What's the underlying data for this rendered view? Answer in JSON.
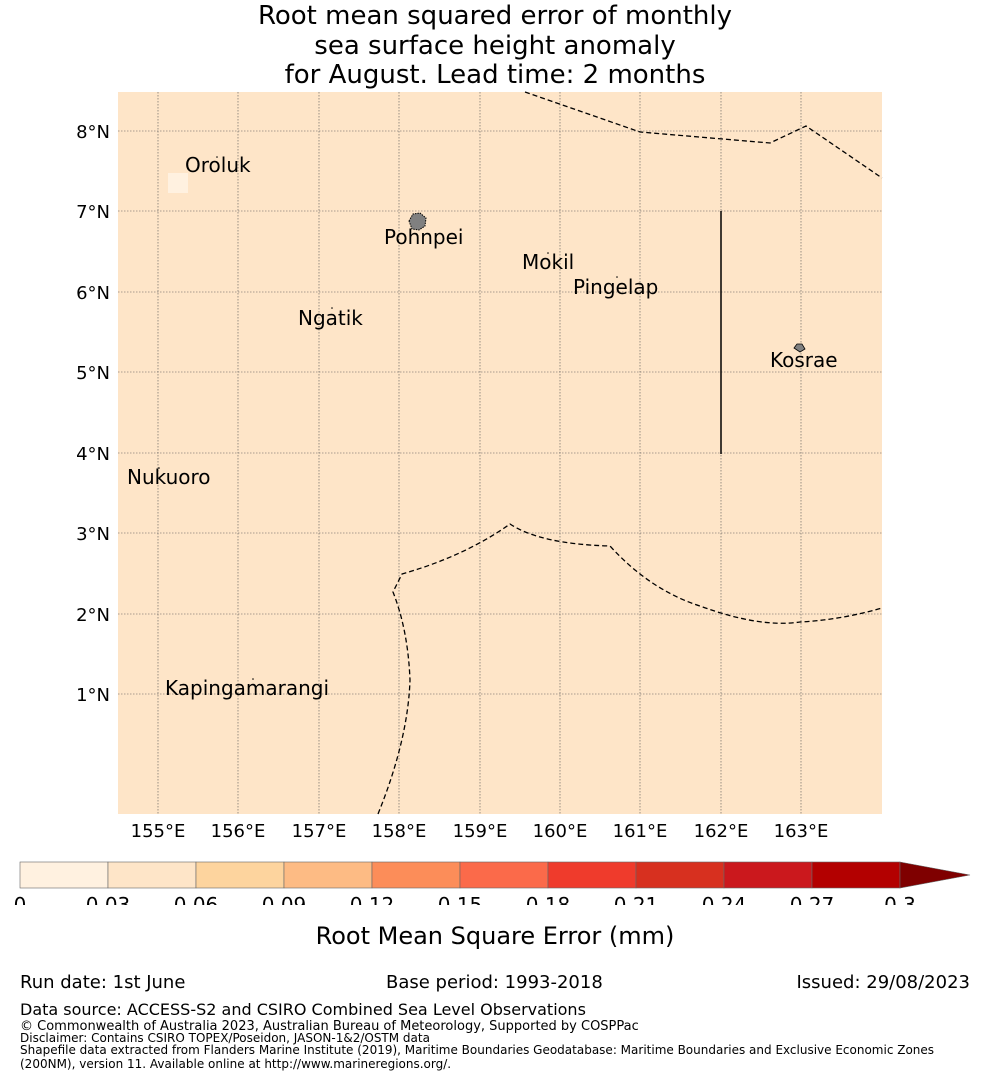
{
  "title": {
    "line1": "Root mean squared error of monthly",
    "line2": "sea surface height anomaly",
    "line3": "for August. Lead time: 2 months"
  },
  "map": {
    "background_color": "#fee5c8",
    "lon_labels": [
      "155°E",
      "156°E",
      "157°E",
      "158°E",
      "159°E",
      "160°E",
      "161°E",
      "162°E",
      "163°E"
    ],
    "lat_labels": [
      "8°N",
      "7°N",
      "6°N",
      "5°N",
      "4°N",
      "3°N",
      "2°N",
      "1°N"
    ],
    "places": [
      {
        "name": "Oroluk"
      },
      {
        "name": "Pohnpei"
      },
      {
        "name": "Mokil"
      },
      {
        "name": "Pingelap"
      },
      {
        "name": "Ngatik"
      },
      {
        "name": "Kosrae"
      },
      {
        "name": "Nukuoro"
      },
      {
        "name": "Kapingamarangi"
      }
    ]
  },
  "colorbar": {
    "label": "Root Mean Square Error (mm)",
    "ticks": [
      "0",
      "0.03",
      "0.06",
      "0.09",
      "0.12",
      "0.15",
      "0.18",
      "0.21",
      "0.24",
      "0.27",
      "0.3"
    ],
    "colors": [
      "#fff1e0",
      "#fee5c8",
      "#fdd49e",
      "#fdbb84",
      "#fc8d59",
      "#fb6a4a",
      "#ef3b2c",
      "#d7301f",
      "#cb181d",
      "#b30000"
    ],
    "extend_color": "#7f0000"
  },
  "footer": {
    "run_date": "Run date: 1st June",
    "base_period": "Base period: 1993-2018",
    "issued": "Issued: 29/08/2023",
    "data_source": "Data source: ACCESS-S2 and CSIRO Combined Sea Level Observations",
    "copyright": "© Commonwealth of Australia 2023, Australian Bureau of Meteorology, Supported by COSPPac",
    "disclaimer": "Disclaimer: Contains CSIRO TOPEX/Poseidon, JASON-1&2/OSTM data",
    "shapefile1": "Shapefile data extracted from Flanders Marine Institute (2019), Maritime Boundaries Geodatabase: Maritime Boundaries and Exclusive Economic Zones",
    "shapefile2": "(200NM), version 11. Available online at http://www.marineregions.org/."
  }
}
